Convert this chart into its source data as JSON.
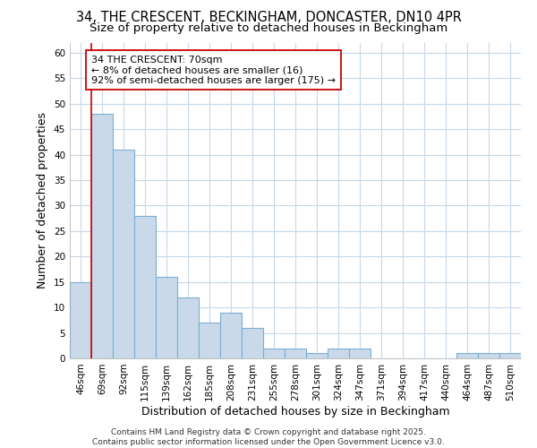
{
  "title_line1": "34, THE CRESCENT, BECKINGHAM, DONCASTER, DN10 4PR",
  "title_line2": "Size of property relative to detached houses in Beckingham",
  "xlabel": "Distribution of detached houses by size in Beckingham",
  "ylabel": "Number of detached properties",
  "categories": [
    "46sqm",
    "69sqm",
    "92sqm",
    "115sqm",
    "139sqm",
    "162sqm",
    "185sqm",
    "208sqm",
    "231sqm",
    "255sqm",
    "278sqm",
    "301sqm",
    "324sqm",
    "347sqm",
    "371sqm",
    "394sqm",
    "417sqm",
    "440sqm",
    "464sqm",
    "487sqm",
    "510sqm"
  ],
  "values": [
    15,
    48,
    41,
    28,
    16,
    12,
    7,
    9,
    6,
    2,
    2,
    1,
    2,
    2,
    0,
    0,
    0,
    0,
    1,
    1,
    1
  ],
  "bar_color": "#c9d9ea",
  "bar_edge_color": "#7bafd4",
  "property_line_x": 0.5,
  "property_line_color": "#cc0000",
  "annotation_text": "34 THE CRESCENT: 70sqm\n← 8% of detached houses are smaller (16)\n92% of semi-detached houses are larger (175) →",
  "annotation_box_facecolor": "#ffffff",
  "annotation_box_edgecolor": "#cc0000",
  "ylim": [
    0,
    62
  ],
  "yticks": [
    0,
    5,
    10,
    15,
    20,
    25,
    30,
    35,
    40,
    45,
    50,
    55,
    60
  ],
  "fig_background": "#ffffff",
  "plot_background": "#ffffff",
  "grid_color": "#c5d8ea",
  "footer_text": "Contains HM Land Registry data © Crown copyright and database right 2025.\nContains public sector information licensed under the Open Government Licence v3.0.",
  "title_fontsize": 10.5,
  "subtitle_fontsize": 9.5,
  "axis_label_fontsize": 9,
  "tick_fontsize": 7.5,
  "annotation_fontsize": 8,
  "footer_fontsize": 6.5
}
